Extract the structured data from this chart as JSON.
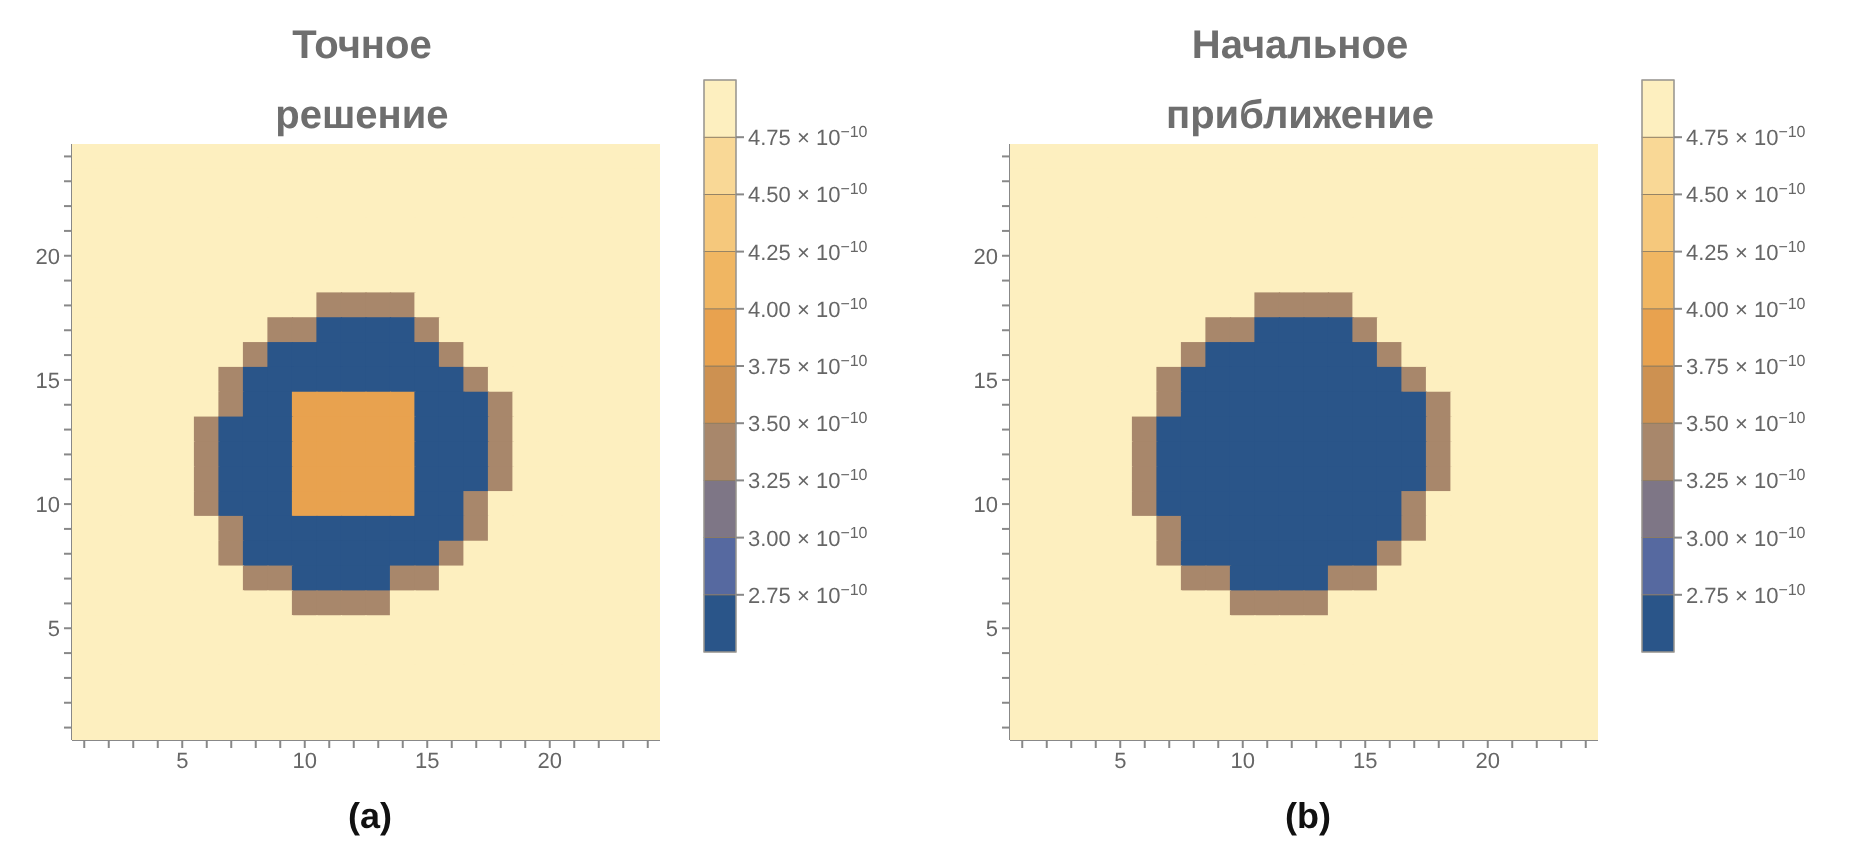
{
  "chart_data": [
    {
      "type": "heatmap",
      "title": "Точное решение",
      "annotations": [
        "(a)"
      ],
      "categories": [
        null,
        null,
        null,
        null,
        "5",
        null,
        null,
        null,
        null,
        "10",
        null,
        null,
        null,
        null,
        "15",
        null,
        null,
        null,
        null,
        "20",
        null,
        null,
        null,
        null
      ],
      "y_categories": [
        null,
        null,
        null,
        null,
        "20",
        null,
        null,
        null,
        null,
        "15",
        null,
        null,
        null,
        null,
        "10",
        null,
        null,
        null,
        null,
        "5",
        null,
        null,
        null,
        null
      ],
      "clim": [
        2.5e-10,
        5e-10
      ],
      "cticks": [
        {
          "value": 2.75e-10,
          "label": "2.75 × 10$^{−10}$"
        },
        {
          "value": 3e-10,
          "label": "3.00 × 10$^{−10}$"
        },
        {
          "value": 3.25e-10,
          "label": "3.25 × 10$^{−10}$"
        },
        {
          "value": 3.5e-10,
          "label": "3.50 × 10$^{−10}$"
        },
        {
          "value": 3.75e-10,
          "label": "3.75 × 10$^{−10}$"
        },
        {
          "value": 4e-10,
          "label": "4.00 × 10$^{−10}$"
        },
        {
          "value": 4.25e-10,
          "label": "4.25 × 10$^{−10}$"
        },
        {
          "value": 4.5e-10,
          "label": "4.50 × 10$^{−10}$"
        },
        {
          "value": 4.75e-10,
          "label": "4.75 × 10$^{−10}$"
        }
      ],
      "colors": [
        "#2a5589",
        "#5669a0",
        "#7e7686",
        "#a8876b",
        "#cd9151",
        "#e8a24f",
        "#f0b662",
        "#f5c87c",
        "#f9d896",
        "#fdefbf"
      ],
      "cells": [
        [
          4.9e-10,
          4.9e-10,
          4.9e-10,
          4.9e-10,
          4.9e-10,
          4.9e-10,
          4.9e-10,
          4.9e-10,
          4.9e-10,
          4.9e-10,
          4.9e-10,
          4.9e-10,
          4.9e-10,
          4.9e-10,
          4.9e-10,
          4.9e-10,
          4.9e-10,
          4.9e-10,
          4.9e-10,
          4.9e-10,
          4.9e-10,
          4.9e-10,
          4.9e-10,
          4.9e-10
        ],
        [
          4.9e-10,
          4.9e-10,
          4.9e-10,
          4.9e-10,
          4.9e-10,
          4.9e-10,
          4.9e-10,
          4.9e-10,
          4.9e-10,
          4.9e-10,
          4.9e-10,
          4.9e-10,
          4.9e-10,
          4.9e-10,
          4.9e-10,
          4.9e-10,
          4.9e-10,
          4.9e-10,
          4.9e-10,
          4.9e-10,
          4.9e-10,
          4.9e-10,
          4.9e-10,
          4.9e-10
        ],
        [
          4.9e-10,
          4.9e-10,
          4.9e-10,
          4.9e-10,
          4.9e-10,
          4.9e-10,
          4.9e-10,
          4.9e-10,
          4.9e-10,
          4.9e-10,
          4.9e-10,
          4.9e-10,
          4.9e-10,
          4.9e-10,
          4.9e-10,
          4.9e-10,
          4.9e-10,
          4.9e-10,
          4.9e-10,
          4.9e-10,
          4.9e-10,
          4.9e-10,
          4.9e-10,
          4.9e-10
        ],
        [
          4.9e-10,
          4.9e-10,
          4.9e-10,
          4.9e-10,
          4.9e-10,
          4.9e-10,
          4.9e-10,
          4.9e-10,
          4.9e-10,
          4.9e-10,
          4.9e-10,
          4.9e-10,
          4.9e-10,
          4.9e-10,
          4.9e-10,
          4.9e-10,
          4.9e-10,
          4.9e-10,
          4.9e-10,
          4.9e-10,
          4.9e-10,
          4.9e-10,
          4.9e-10,
          4.9e-10
        ],
        [
          4.9e-10,
          4.9e-10,
          4.9e-10,
          4.9e-10,
          4.9e-10,
          4.9e-10,
          4.9e-10,
          4.9e-10,
          4.9e-10,
          4.9e-10,
          4.9e-10,
          4.9e-10,
          4.9e-10,
          4.9e-10,
          4.9e-10,
          4.9e-10,
          4.9e-10,
          4.9e-10,
          4.9e-10,
          4.9e-10,
          4.9e-10,
          4.9e-10,
          4.9e-10,
          4.9e-10
        ],
        [
          4.9e-10,
          4.9e-10,
          4.9e-10,
          4.9e-10,
          4.9e-10,
          4.9e-10,
          4.9e-10,
          4.9e-10,
          4.9e-10,
          4.9e-10,
          4.9e-10,
          4.9e-10,
          4.9e-10,
          4.9e-10,
          4.9e-10,
          4.9e-10,
          4.9e-10,
          4.9e-10,
          4.9e-10,
          4.9e-10,
          4.9e-10,
          4.9e-10,
          4.9e-10,
          4.9e-10
        ],
        [
          4.9e-10,
          4.9e-10,
          4.9e-10,
          4.9e-10,
          4.9e-10,
          4.9e-10,
          4.9e-10,
          4.9e-10,
          4.9e-10,
          4.9e-10,
          3.4e-10,
          3.4e-10,
          3.4e-10,
          3.4e-10,
          4.9e-10,
          4.9e-10,
          4.9e-10,
          4.9e-10,
          4.9e-10,
          4.9e-10,
          4.9e-10,
          4.9e-10,
          4.9e-10,
          4.9e-10
        ],
        [
          4.9e-10,
          4.9e-10,
          4.9e-10,
          4.9e-10,
          4.9e-10,
          4.9e-10,
          4.9e-10,
          4.9e-10,
          3.4e-10,
          3.4e-10,
          2.6e-10,
          2.6e-10,
          2.6e-10,
          2.6e-10,
          3.4e-10,
          4.9e-10,
          4.9e-10,
          4.9e-10,
          4.9e-10,
          4.9e-10,
          4.9e-10,
          4.9e-10,
          4.9e-10,
          4.9e-10
        ],
        [
          4.9e-10,
          4.9e-10,
          4.9e-10,
          4.9e-10,
          4.9e-10,
          4.9e-10,
          4.9e-10,
          3.4e-10,
          2.6e-10,
          2.6e-10,
          2.6e-10,
          2.6e-10,
          2.6e-10,
          2.6e-10,
          2.6e-10,
          3.4e-10,
          4.9e-10,
          4.9e-10,
          4.9e-10,
          4.9e-10,
          4.9e-10,
          4.9e-10,
          4.9e-10,
          4.9e-10
        ],
        [
          4.9e-10,
          4.9e-10,
          4.9e-10,
          4.9e-10,
          4.9e-10,
          4.9e-10,
          3.4e-10,
          2.6e-10,
          2.6e-10,
          2.6e-10,
          2.6e-10,
          2.6e-10,
          2.6e-10,
          2.6e-10,
          2.6e-10,
          2.6e-10,
          3.4e-10,
          4.9e-10,
          4.9e-10,
          4.9e-10,
          4.9e-10,
          4.9e-10,
          4.9e-10,
          4.9e-10
        ],
        [
          4.9e-10,
          4.9e-10,
          4.9e-10,
          4.9e-10,
          4.9e-10,
          4.9e-10,
          3.4e-10,
          2.6e-10,
          2.6e-10,
          3.9e-10,
          3.9e-10,
          3.9e-10,
          3.9e-10,
          3.9e-10,
          2.6e-10,
          2.6e-10,
          2.6e-10,
          3.4e-10,
          4.9e-10,
          4.9e-10,
          4.9e-10,
          4.9e-10,
          4.9e-10,
          4.9e-10
        ],
        [
          4.9e-10,
          4.9e-10,
          4.9e-10,
          4.9e-10,
          4.9e-10,
          3.4e-10,
          2.6e-10,
          2.6e-10,
          2.6e-10,
          3.9e-10,
          3.9e-10,
          3.9e-10,
          3.9e-10,
          3.9e-10,
          2.6e-10,
          2.6e-10,
          2.6e-10,
          3.4e-10,
          4.9e-10,
          4.9e-10,
          4.9e-10,
          4.9e-10,
          4.9e-10,
          4.9e-10
        ],
        [
          4.9e-10,
          4.9e-10,
          4.9e-10,
          4.9e-10,
          4.9e-10,
          3.4e-10,
          2.6e-10,
          2.6e-10,
          2.6e-10,
          3.9e-10,
          3.9e-10,
          3.9e-10,
          3.9e-10,
          3.9e-10,
          2.6e-10,
          2.6e-10,
          2.6e-10,
          3.4e-10,
          4.9e-10,
          4.9e-10,
          4.9e-10,
          4.9e-10,
          4.9e-10,
          4.9e-10
        ],
        [
          4.9e-10,
          4.9e-10,
          4.9e-10,
          4.9e-10,
          4.9e-10,
          3.4e-10,
          2.6e-10,
          2.6e-10,
          2.6e-10,
          3.9e-10,
          3.9e-10,
          3.9e-10,
          3.9e-10,
          3.9e-10,
          2.6e-10,
          2.6e-10,
          2.6e-10,
          3.4e-10,
          4.9e-10,
          4.9e-10,
          4.9e-10,
          4.9e-10,
          4.9e-10,
          4.9e-10
        ],
        [
          4.9e-10,
          4.9e-10,
          4.9e-10,
          4.9e-10,
          4.9e-10,
          3.4e-10,
          2.6e-10,
          2.6e-10,
          2.6e-10,
          3.9e-10,
          3.9e-10,
          3.9e-10,
          3.9e-10,
          3.9e-10,
          2.6e-10,
          2.6e-10,
          3.4e-10,
          4.9e-10,
          4.9e-10,
          4.9e-10,
          4.9e-10,
          4.9e-10,
          4.9e-10,
          4.9e-10
        ],
        [
          4.9e-10,
          4.9e-10,
          4.9e-10,
          4.9e-10,
          4.9e-10,
          4.9e-10,
          3.4e-10,
          2.6e-10,
          2.6e-10,
          2.6e-10,
          2.6e-10,
          2.6e-10,
          2.6e-10,
          2.6e-10,
          2.6e-10,
          2.6e-10,
          3.4e-10,
          4.9e-10,
          4.9e-10,
          4.9e-10,
          4.9e-10,
          4.9e-10,
          4.9e-10,
          4.9e-10
        ],
        [
          4.9e-10,
          4.9e-10,
          4.9e-10,
          4.9e-10,
          4.9e-10,
          4.9e-10,
          3.4e-10,
          2.6e-10,
          2.6e-10,
          2.6e-10,
          2.6e-10,
          2.6e-10,
          2.6e-10,
          2.6e-10,
          2.6e-10,
          3.4e-10,
          4.9e-10,
          4.9e-10,
          4.9e-10,
          4.9e-10,
          4.9e-10,
          4.9e-10,
          4.9e-10,
          4.9e-10
        ],
        [
          4.9e-10,
          4.9e-10,
          4.9e-10,
          4.9e-10,
          4.9e-10,
          4.9e-10,
          4.9e-10,
          3.4e-10,
          3.4e-10,
          2.6e-10,
          2.6e-10,
          2.6e-10,
          2.6e-10,
          3.4e-10,
          3.4e-10,
          4.9e-10,
          4.9e-10,
          4.9e-10,
          4.9e-10,
          4.9e-10,
          4.9e-10,
          4.9e-10,
          4.9e-10,
          4.9e-10
        ],
        [
          4.9e-10,
          4.9e-10,
          4.9e-10,
          4.9e-10,
          4.9e-10,
          4.9e-10,
          4.9e-10,
          4.9e-10,
          4.9e-10,
          3.4e-10,
          3.4e-10,
          3.4e-10,
          3.4e-10,
          4.9e-10,
          4.9e-10,
          4.9e-10,
          4.9e-10,
          4.9e-10,
          4.9e-10,
          4.9e-10,
          4.9e-10,
          4.9e-10,
          4.9e-10,
          4.9e-10
        ],
        [
          4.9e-10,
          4.9e-10,
          4.9e-10,
          4.9e-10,
          4.9e-10,
          4.9e-10,
          4.9e-10,
          4.9e-10,
          4.9e-10,
          4.9e-10,
          4.9e-10,
          4.9e-10,
          4.9e-10,
          4.9e-10,
          4.9e-10,
          4.9e-10,
          4.9e-10,
          4.9e-10,
          4.9e-10,
          4.9e-10,
          4.9e-10,
          4.9e-10,
          4.9e-10,
          4.9e-10
        ],
        [
          4.9e-10,
          4.9e-10,
          4.9e-10,
          4.9e-10,
          4.9e-10,
          4.9e-10,
          4.9e-10,
          4.9e-10,
          4.9e-10,
          4.9e-10,
          4.9e-10,
          4.9e-10,
          4.9e-10,
          4.9e-10,
          4.9e-10,
          4.9e-10,
          4.9e-10,
          4.9e-10,
          4.9e-10,
          4.9e-10,
          4.9e-10,
          4.9e-10,
          4.9e-10,
          4.9e-10
        ],
        [
          4.9e-10,
          4.9e-10,
          4.9e-10,
          4.9e-10,
          4.9e-10,
          4.9e-10,
          4.9e-10,
          4.9e-10,
          4.9e-10,
          4.9e-10,
          4.9e-10,
          4.9e-10,
          4.9e-10,
          4.9e-10,
          4.9e-10,
          4.9e-10,
          4.9e-10,
          4.9e-10,
          4.9e-10,
          4.9e-10,
          4.9e-10,
          4.9e-10,
          4.9e-10,
          4.9e-10
        ],
        [
          4.9e-10,
          4.9e-10,
          4.9e-10,
          4.9e-10,
          4.9e-10,
          4.9e-10,
          4.9e-10,
          4.9e-10,
          4.9e-10,
          4.9e-10,
          4.9e-10,
          4.9e-10,
          4.9e-10,
          4.9e-10,
          4.9e-10,
          4.9e-10,
          4.9e-10,
          4.9e-10,
          4.9e-10,
          4.9e-10,
          4.9e-10,
          4.9e-10,
          4.9e-10,
          4.9e-10
        ],
        [
          4.9e-10,
          4.9e-10,
          4.9e-10,
          4.9e-10,
          4.9e-10,
          4.9e-10,
          4.9e-10,
          4.9e-10,
          4.9e-10,
          4.9e-10,
          4.9e-10,
          4.9e-10,
          4.9e-10,
          4.9e-10,
          4.9e-10,
          4.9e-10,
          4.9e-10,
          4.9e-10,
          4.9e-10,
          4.9e-10,
          4.9e-10,
          4.9e-10,
          4.9e-10,
          4.9e-10
        ]
      ]
    },
    {
      "type": "heatmap",
      "title": "Начальное приближение",
      "annotations": [
        "(b)"
      ],
      "categories": [
        null,
        null,
        null,
        null,
        "5",
        null,
        null,
        null,
        null,
        "10",
        null,
        null,
        null,
        null,
        "15",
        null,
        null,
        null,
        null,
        "20",
        null,
        null,
        null,
        null
      ],
      "y_categories": [
        null,
        null,
        null,
        null,
        "20",
        null,
        null,
        null,
        null,
        "15",
        null,
        null,
        null,
        null,
        "10",
        null,
        null,
        null,
        null,
        "5",
        null,
        null,
        null,
        null
      ],
      "clim": [
        2.5e-10,
        5e-10
      ],
      "cticks": [
        {
          "value": 2.75e-10,
          "label": "2.75 × 10$^{−10}$"
        },
        {
          "value": 3e-10,
          "label": "3.00 × 10$^{−10}$"
        },
        {
          "value": 3.25e-10,
          "label": "3.25 × 10$^{−10}$"
        },
        {
          "value": 3.5e-10,
          "label": "3.50 × 10$^{−10}$"
        },
        {
          "value": 3.75e-10,
          "label": "3.75 × 10$^{−10}$"
        },
        {
          "value": 4e-10,
          "label": "4.00 × 10$^{−10}$"
        },
        {
          "value": 4.25e-10,
          "label": "4.25 × 10$^{−10}$"
        },
        {
          "value": 4.5e-10,
          "label": "4.50 × 10$^{−10}$"
        },
        {
          "value": 4.75e-10,
          "label": "4.75 × 10$^{−10}$"
        }
      ],
      "colors": [
        "#2a5589",
        "#5669a0",
        "#7e7686",
        "#a8876b",
        "#cd9151",
        "#e8a24f",
        "#f0b662",
        "#f5c87c",
        "#f9d896",
        "#fdefbf"
      ],
      "cells": [
        [
          4.9e-10,
          4.9e-10,
          4.9e-10,
          4.9e-10,
          4.9e-10,
          4.9e-10,
          4.9e-10,
          4.9e-10,
          4.9e-10,
          4.9e-10,
          4.9e-10,
          4.9e-10,
          4.9e-10,
          4.9e-10,
          4.9e-10,
          4.9e-10,
          4.9e-10,
          4.9e-10,
          4.9e-10,
          4.9e-10,
          4.9e-10,
          4.9e-10,
          4.9e-10,
          4.9e-10
        ],
        [
          4.9e-10,
          4.9e-10,
          4.9e-10,
          4.9e-10,
          4.9e-10,
          4.9e-10,
          4.9e-10,
          4.9e-10,
          4.9e-10,
          4.9e-10,
          4.9e-10,
          4.9e-10,
          4.9e-10,
          4.9e-10,
          4.9e-10,
          4.9e-10,
          4.9e-10,
          4.9e-10,
          4.9e-10,
          4.9e-10,
          4.9e-10,
          4.9e-10,
          4.9e-10,
          4.9e-10
        ],
        [
          4.9e-10,
          4.9e-10,
          4.9e-10,
          4.9e-10,
          4.9e-10,
          4.9e-10,
          4.9e-10,
          4.9e-10,
          4.9e-10,
          4.9e-10,
          4.9e-10,
          4.9e-10,
          4.9e-10,
          4.9e-10,
          4.9e-10,
          4.9e-10,
          4.9e-10,
          4.9e-10,
          4.9e-10,
          4.9e-10,
          4.9e-10,
          4.9e-10,
          4.9e-10,
          4.9e-10
        ],
        [
          4.9e-10,
          4.9e-10,
          4.9e-10,
          4.9e-10,
          4.9e-10,
          4.9e-10,
          4.9e-10,
          4.9e-10,
          4.9e-10,
          4.9e-10,
          4.9e-10,
          4.9e-10,
          4.9e-10,
          4.9e-10,
          4.9e-10,
          4.9e-10,
          4.9e-10,
          4.9e-10,
          4.9e-10,
          4.9e-10,
          4.9e-10,
          4.9e-10,
          4.9e-10,
          4.9e-10
        ],
        [
          4.9e-10,
          4.9e-10,
          4.9e-10,
          4.9e-10,
          4.9e-10,
          4.9e-10,
          4.9e-10,
          4.9e-10,
          4.9e-10,
          4.9e-10,
          4.9e-10,
          4.9e-10,
          4.9e-10,
          4.9e-10,
          4.9e-10,
          4.9e-10,
          4.9e-10,
          4.9e-10,
          4.9e-10,
          4.9e-10,
          4.9e-10,
          4.9e-10,
          4.9e-10,
          4.9e-10
        ],
        [
          4.9e-10,
          4.9e-10,
          4.9e-10,
          4.9e-10,
          4.9e-10,
          4.9e-10,
          4.9e-10,
          4.9e-10,
          4.9e-10,
          4.9e-10,
          4.9e-10,
          4.9e-10,
          4.9e-10,
          4.9e-10,
          4.9e-10,
          4.9e-10,
          4.9e-10,
          4.9e-10,
          4.9e-10,
          4.9e-10,
          4.9e-10,
          4.9e-10,
          4.9e-10,
          4.9e-10
        ],
        [
          4.9e-10,
          4.9e-10,
          4.9e-10,
          4.9e-10,
          4.9e-10,
          4.9e-10,
          4.9e-10,
          4.9e-10,
          4.9e-10,
          4.9e-10,
          3.4e-10,
          3.4e-10,
          3.4e-10,
          3.4e-10,
          4.9e-10,
          4.9e-10,
          4.9e-10,
          4.9e-10,
          4.9e-10,
          4.9e-10,
          4.9e-10,
          4.9e-10,
          4.9e-10,
          4.9e-10
        ],
        [
          4.9e-10,
          4.9e-10,
          4.9e-10,
          4.9e-10,
          4.9e-10,
          4.9e-10,
          4.9e-10,
          4.9e-10,
          3.4e-10,
          3.4e-10,
          2.6e-10,
          2.6e-10,
          2.6e-10,
          2.6e-10,
          3.4e-10,
          4.9e-10,
          4.9e-10,
          4.9e-10,
          4.9e-10,
          4.9e-10,
          4.9e-10,
          4.9e-10,
          4.9e-10,
          4.9e-10
        ],
        [
          4.9e-10,
          4.9e-10,
          4.9e-10,
          4.9e-10,
          4.9e-10,
          4.9e-10,
          4.9e-10,
          3.4e-10,
          2.6e-10,
          2.6e-10,
          2.6e-10,
          2.6e-10,
          2.6e-10,
          2.6e-10,
          2.6e-10,
          3.4e-10,
          4.9e-10,
          4.9e-10,
          4.9e-10,
          4.9e-10,
          4.9e-10,
          4.9e-10,
          4.9e-10,
          4.9e-10
        ],
        [
          4.9e-10,
          4.9e-10,
          4.9e-10,
          4.9e-10,
          4.9e-10,
          4.9e-10,
          3.4e-10,
          2.6e-10,
          2.6e-10,
          2.6e-10,
          2.6e-10,
          2.6e-10,
          2.6e-10,
          2.6e-10,
          2.6e-10,
          2.6e-10,
          3.4e-10,
          4.9e-10,
          4.9e-10,
          4.9e-10,
          4.9e-10,
          4.9e-10,
          4.9e-10,
          4.9e-10
        ],
        [
          4.9e-10,
          4.9e-10,
          4.9e-10,
          4.9e-10,
          4.9e-10,
          4.9e-10,
          3.4e-10,
          2.6e-10,
          2.6e-10,
          2.6e-10,
          2.6e-10,
          2.6e-10,
          2.6e-10,
          2.6e-10,
          2.6e-10,
          2.6e-10,
          2.6e-10,
          3.4e-10,
          4.9e-10,
          4.9e-10,
          4.9e-10,
          4.9e-10,
          4.9e-10,
          4.9e-10
        ],
        [
          4.9e-10,
          4.9e-10,
          4.9e-10,
          4.9e-10,
          4.9e-10,
          3.4e-10,
          2.6e-10,
          2.6e-10,
          2.6e-10,
          2.6e-10,
          2.6e-10,
          2.6e-10,
          2.6e-10,
          2.6e-10,
          2.6e-10,
          2.6e-10,
          2.6e-10,
          3.4e-10,
          4.9e-10,
          4.9e-10,
          4.9e-10,
          4.9e-10,
          4.9e-10,
          4.9e-10
        ],
        [
          4.9e-10,
          4.9e-10,
          4.9e-10,
          4.9e-10,
          4.9e-10,
          3.4e-10,
          2.6e-10,
          2.6e-10,
          2.6e-10,
          2.6e-10,
          2.6e-10,
          2.6e-10,
          2.6e-10,
          2.6e-10,
          2.6e-10,
          2.6e-10,
          2.6e-10,
          3.4e-10,
          4.9e-10,
          4.9e-10,
          4.9e-10,
          4.9e-10,
          4.9e-10,
          4.9e-10
        ],
        [
          4.9e-10,
          4.9e-10,
          4.9e-10,
          4.9e-10,
          4.9e-10,
          3.4e-10,
          2.6e-10,
          2.6e-10,
          2.6e-10,
          2.6e-10,
          2.6e-10,
          2.6e-10,
          2.6e-10,
          2.6e-10,
          2.6e-10,
          2.6e-10,
          2.6e-10,
          3.4e-10,
          4.9e-10,
          4.9e-10,
          4.9e-10,
          4.9e-10,
          4.9e-10,
          4.9e-10
        ],
        [
          4.9e-10,
          4.9e-10,
          4.9e-10,
          4.9e-10,
          4.9e-10,
          3.4e-10,
          2.6e-10,
          2.6e-10,
          2.6e-10,
          2.6e-10,
          2.6e-10,
          2.6e-10,
          2.6e-10,
          2.6e-10,
          2.6e-10,
          2.6e-10,
          3.4e-10,
          4.9e-10,
          4.9e-10,
          4.9e-10,
          4.9e-10,
          4.9e-10,
          4.9e-10,
          4.9e-10
        ],
        [
          4.9e-10,
          4.9e-10,
          4.9e-10,
          4.9e-10,
          4.9e-10,
          4.9e-10,
          3.4e-10,
          2.6e-10,
          2.6e-10,
          2.6e-10,
          2.6e-10,
          2.6e-10,
          2.6e-10,
          2.6e-10,
          2.6e-10,
          2.6e-10,
          3.4e-10,
          4.9e-10,
          4.9e-10,
          4.9e-10,
          4.9e-10,
          4.9e-10,
          4.9e-10,
          4.9e-10
        ],
        [
          4.9e-10,
          4.9e-10,
          4.9e-10,
          4.9e-10,
          4.9e-10,
          4.9e-10,
          3.4e-10,
          2.6e-10,
          2.6e-10,
          2.6e-10,
          2.6e-10,
          2.6e-10,
          2.6e-10,
          2.6e-10,
          2.6e-10,
          3.4e-10,
          4.9e-10,
          4.9e-10,
          4.9e-10,
          4.9e-10,
          4.9e-10,
          4.9e-10,
          4.9e-10,
          4.9e-10
        ],
        [
          4.9e-10,
          4.9e-10,
          4.9e-10,
          4.9e-10,
          4.9e-10,
          4.9e-10,
          4.9e-10,
          3.4e-10,
          3.4e-10,
          2.6e-10,
          2.6e-10,
          2.6e-10,
          2.6e-10,
          3.4e-10,
          3.4e-10,
          4.9e-10,
          4.9e-10,
          4.9e-10,
          4.9e-10,
          4.9e-10,
          4.9e-10,
          4.9e-10,
          4.9e-10,
          4.9e-10
        ],
        [
          4.9e-10,
          4.9e-10,
          4.9e-10,
          4.9e-10,
          4.9e-10,
          4.9e-10,
          4.9e-10,
          4.9e-10,
          4.9e-10,
          3.4e-10,
          3.4e-10,
          3.4e-10,
          3.4e-10,
          4.9e-10,
          4.9e-10,
          4.9e-10,
          4.9e-10,
          4.9e-10,
          4.9e-10,
          4.9e-10,
          4.9e-10,
          4.9e-10,
          4.9e-10,
          4.9e-10
        ],
        [
          4.9e-10,
          4.9e-10,
          4.9e-10,
          4.9e-10,
          4.9e-10,
          4.9e-10,
          4.9e-10,
          4.9e-10,
          4.9e-10,
          4.9e-10,
          4.9e-10,
          4.9e-10,
          4.9e-10,
          4.9e-10,
          4.9e-10,
          4.9e-10,
          4.9e-10,
          4.9e-10,
          4.9e-10,
          4.9e-10,
          4.9e-10,
          4.9e-10,
          4.9e-10,
          4.9e-10
        ],
        [
          4.9e-10,
          4.9e-10,
          4.9e-10,
          4.9e-10,
          4.9e-10,
          4.9e-10,
          4.9e-10,
          4.9e-10,
          4.9e-10,
          4.9e-10,
          4.9e-10,
          4.9e-10,
          4.9e-10,
          4.9e-10,
          4.9e-10,
          4.9e-10,
          4.9e-10,
          4.9e-10,
          4.9e-10,
          4.9e-10,
          4.9e-10,
          4.9e-10,
          4.9e-10,
          4.9e-10
        ],
        [
          4.9e-10,
          4.9e-10,
          4.9e-10,
          4.9e-10,
          4.9e-10,
          4.9e-10,
          4.9e-10,
          4.9e-10,
          4.9e-10,
          4.9e-10,
          4.9e-10,
          4.9e-10,
          4.9e-10,
          4.9e-10,
          4.9e-10,
          4.9e-10,
          4.9e-10,
          4.9e-10,
          4.9e-10,
          4.9e-10,
          4.9e-10,
          4.9e-10,
          4.9e-10,
          4.9e-10
        ],
        [
          4.9e-10,
          4.9e-10,
          4.9e-10,
          4.9e-10,
          4.9e-10,
          4.9e-10,
          4.9e-10,
          4.9e-10,
          4.9e-10,
          4.9e-10,
          4.9e-10,
          4.9e-10,
          4.9e-10,
          4.9e-10,
          4.9e-10,
          4.9e-10,
          4.9e-10,
          4.9e-10,
          4.9e-10,
          4.9e-10,
          4.9e-10,
          4.9e-10,
          4.9e-10,
          4.9e-10
        ],
        [
          4.9e-10,
          4.9e-10,
          4.9e-10,
          4.9e-10,
          4.9e-10,
          4.9e-10,
          4.9e-10,
          4.9e-10,
          4.9e-10,
          4.9e-10,
          4.9e-10,
          4.9e-10,
          4.9e-10,
          4.9e-10,
          4.9e-10,
          4.9e-10,
          4.9e-10,
          4.9e-10,
          4.9e-10,
          4.9e-10,
          4.9e-10,
          4.9e-10,
          4.9e-10,
          4.9e-10
        ]
      ]
    }
  ]
}
